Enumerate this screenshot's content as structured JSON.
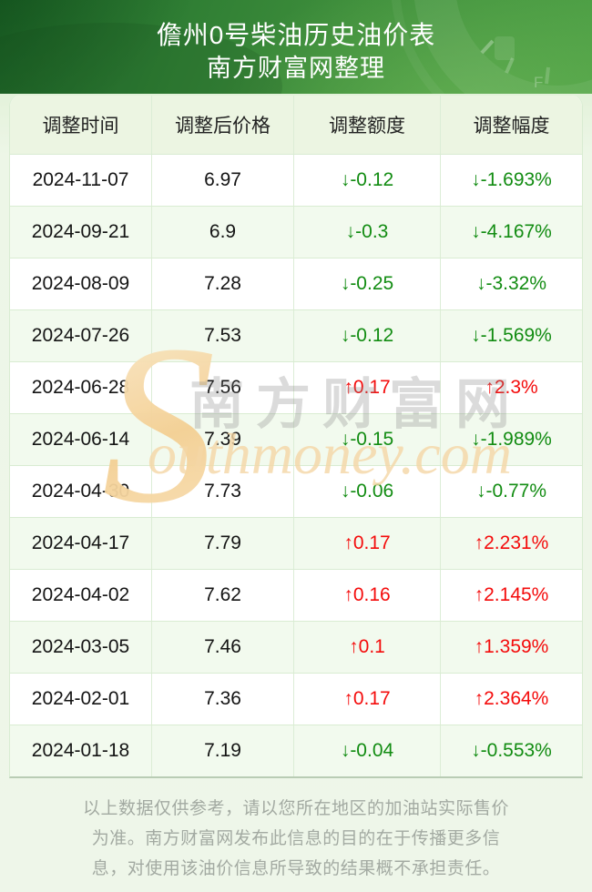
{
  "banner": {
    "title": "儋州0号柴油历史油价表",
    "subtitle": "南方财富网整理"
  },
  "table": {
    "columns": [
      "调整时间",
      "调整后价格",
      "调整额度",
      "调整幅度"
    ],
    "rows": [
      {
        "date": "2024-11-07",
        "price": "6.97",
        "change": "↓-0.12",
        "pct": "↓-1.693%",
        "direction": "down"
      },
      {
        "date": "2024-09-21",
        "price": "6.9",
        "change": "↓-0.3",
        "pct": "↓-4.167%",
        "direction": "down"
      },
      {
        "date": "2024-08-09",
        "price": "7.28",
        "change": "↓-0.25",
        "pct": "↓-3.32%",
        "direction": "down"
      },
      {
        "date": "2024-07-26",
        "price": "7.53",
        "change": "↓-0.12",
        "pct": "↓-1.569%",
        "direction": "down"
      },
      {
        "date": "2024-06-28",
        "price": "7.56",
        "change": "↑0.17",
        "pct": "↑2.3%",
        "direction": "up"
      },
      {
        "date": "2024-06-14",
        "price": "7.39",
        "change": "↓-0.15",
        "pct": "↓-1.989%",
        "direction": "down"
      },
      {
        "date": "2024-04-30",
        "price": "7.73",
        "change": "↓-0.06",
        "pct": "↓-0.77%",
        "direction": "down"
      },
      {
        "date": "2024-04-17",
        "price": "7.79",
        "change": "↑0.17",
        "pct": "↑2.231%",
        "direction": "up"
      },
      {
        "date": "2024-04-02",
        "price": "7.62",
        "change": "↑0.16",
        "pct": "↑2.145%",
        "direction": "up"
      },
      {
        "date": "2024-03-05",
        "price": "7.46",
        "change": "↑0.1",
        "pct": "↑1.359%",
        "direction": "up"
      },
      {
        "date": "2024-02-01",
        "price": "7.36",
        "change": "↑0.17",
        "pct": "↑2.364%",
        "direction": "up"
      },
      {
        "date": "2024-01-18",
        "price": "7.19",
        "change": "↓-0.04",
        "pct": "↓-0.553%",
        "direction": "down"
      }
    ]
  },
  "watermark": {
    "swoosh": "S",
    "cn": "南方财富网",
    "en": "outhmoney.com"
  },
  "footer": {
    "disclaimer": "以上数据仅供参考，请以您所在地区的加油站实际售价为准。南方财富网发布此信息的目的在于传播更多信息，对使用该油价信息所导致的结果概不承担责任。"
  },
  "colors": {
    "up": "#f40b0b",
    "down": "#128c12",
    "banner_green_dark": "#1d6427",
    "banner_green_light": "#4fa146",
    "row_alt": "#f2faee",
    "header_row_bg": "#ecf5e2",
    "grid_line": "#d9ecd2",
    "watermark_orange": "#f4cf93"
  },
  "chart_data": {
    "type": "table",
    "title": "儋州0号柴油历史油价表",
    "subtitle": "南方财富网整理",
    "columns": [
      "调整时间",
      "调整后价格",
      "调整额度",
      "调整幅度"
    ],
    "rows": [
      [
        "2024-11-07",
        6.97,
        -0.12,
        "-1.693%"
      ],
      [
        "2024-09-21",
        6.9,
        -0.3,
        "-4.167%"
      ],
      [
        "2024-08-09",
        7.28,
        -0.25,
        "-3.32%"
      ],
      [
        "2024-07-26",
        7.53,
        -0.12,
        "-1.569%"
      ],
      [
        "2024-06-28",
        7.56,
        0.17,
        "2.3%"
      ],
      [
        "2024-06-14",
        7.39,
        -0.15,
        "-1.989%"
      ],
      [
        "2024-04-30",
        7.73,
        -0.06,
        "-0.77%"
      ],
      [
        "2024-04-17",
        7.79,
        0.17,
        "2.231%"
      ],
      [
        "2024-04-02",
        7.62,
        0.16,
        "2.145%"
      ],
      [
        "2024-03-05",
        7.46,
        0.1,
        "1.359%"
      ],
      [
        "2024-02-01",
        7.36,
        0.17,
        "2.364%"
      ],
      [
        "2024-01-18",
        7.19,
        -0.04,
        "-0.553%"
      ]
    ]
  }
}
